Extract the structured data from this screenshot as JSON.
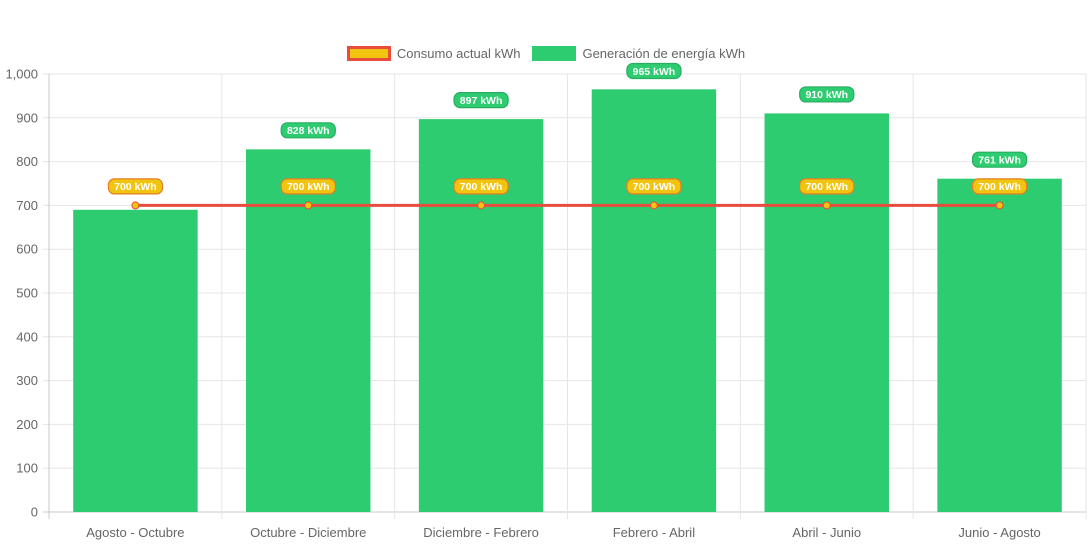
{
  "chart_data": {
    "type": "bar",
    "categories": [
      "Agosto - Octubre",
      "Octubre - Diciembre",
      "Diciembre - Febrero",
      "Febrero - Abril",
      "Abril - Junio",
      "Junio - Agosto"
    ],
    "series": [
      {
        "name": "Consumo actual kWh",
        "type": "line",
        "values": [
          700,
          700,
          700,
          700,
          700,
          700
        ],
        "labels": [
          "700 kWh",
          "700 kWh",
          "700 kWh",
          "700 kWh",
          "700 kWh",
          "700 kWh"
        ],
        "color": "#f1c40f",
        "border_color": "#e74c3c"
      },
      {
        "name": "Generación de energía kWh",
        "type": "bar",
        "values": [
          690,
          828,
          897,
          965,
          910,
          761
        ],
        "labels": [
          "",
          "828 kWh",
          "897 kWh",
          "965 kWh",
          "910 kWh",
          "761 kWh"
        ],
        "color": "#2ecc71"
      }
    ],
    "y_ticks": [
      "0",
      "100",
      "200",
      "300",
      "400",
      "500",
      "600",
      "700",
      "800",
      "900",
      "1,000"
    ],
    "ylim": [
      0,
      1000
    ],
    "grid": true,
    "legend_position": "top-center",
    "title": "",
    "xlabel": "",
    "ylabel": ""
  }
}
